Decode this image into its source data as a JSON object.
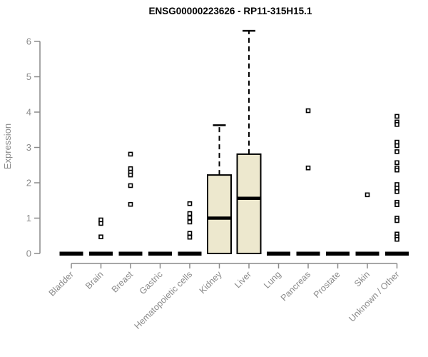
{
  "title": "ENSG00000223626 - RP11-315H15.1",
  "chart_data": {
    "type": "boxplot",
    "title": "ENSG00000223626 - RP11-315H15.1",
    "xlabel": "",
    "ylabel": "Expression",
    "ylim": [
      0,
      6.4
    ],
    "yticks": [
      0,
      1,
      2,
      3,
      4,
      5,
      6
    ],
    "grid": false,
    "legend": "none",
    "categories": [
      "Bladder",
      "Brain",
      "Breast",
      "Gastric",
      "Hematopoietic cells",
      "Kidney",
      "Liver",
      "Lung",
      "Pancreas",
      "Prostate",
      "Skin",
      "Unknown / Other"
    ],
    "boxes": [
      {
        "category": "Bladder",
        "q1": 0,
        "median": 0,
        "q3": 0,
        "whisker_low": 0,
        "whisker_high": 0,
        "outliers": []
      },
      {
        "category": "Brain",
        "q1": 0,
        "median": 0,
        "q3": 0,
        "whisker_low": 0,
        "whisker_high": 0,
        "outliers": [
          0.95,
          0.85,
          0.47
        ]
      },
      {
        "category": "Breast",
        "q1": 0,
        "median": 0,
        "q3": 0,
        "whisker_low": 0,
        "whisker_high": 0,
        "outliers": [
          2.81,
          2.4,
          2.3,
          2.22,
          1.92,
          1.39
        ]
      },
      {
        "category": "Gastric",
        "q1": 0,
        "median": 0,
        "q3": 0,
        "whisker_low": 0,
        "whisker_high": 0,
        "outliers": []
      },
      {
        "category": "Hematopoietic cells",
        "q1": 0,
        "median": 0,
        "q3": 0,
        "whisker_low": 0,
        "whisker_high": 0,
        "outliers": [
          1.41,
          1.13,
          1.01,
          0.89,
          0.57,
          0.46
        ]
      },
      {
        "category": "Kidney",
        "q1": 0,
        "median": 1.0,
        "q3": 2.22,
        "whisker_low": 0,
        "whisker_high": 3.63,
        "outliers": []
      },
      {
        "category": "Liver",
        "q1": 0,
        "median": 1.56,
        "q3": 2.81,
        "whisker_low": 0,
        "whisker_high": 6.3,
        "outliers": []
      },
      {
        "category": "Lung",
        "q1": 0,
        "median": 0,
        "q3": 0,
        "whisker_low": 0,
        "whisker_high": 0,
        "outliers": []
      },
      {
        "category": "Pancreas",
        "q1": 0,
        "median": 0,
        "q3": 0,
        "whisker_low": 0,
        "whisker_high": 0,
        "outliers": [
          4.04,
          2.42
        ]
      },
      {
        "category": "Prostate",
        "q1": 0,
        "median": 0,
        "q3": 0,
        "whisker_low": 0,
        "whisker_high": 0,
        "outliers": []
      },
      {
        "category": "Skin",
        "q1": 0,
        "median": 0,
        "q3": 0,
        "whisker_low": 0,
        "whisker_high": 0,
        "outliers": [
          1.66
        ]
      },
      {
        "category": "Unknown / Other",
        "q1": 0,
        "median": 0,
        "q3": 0,
        "whisker_low": 0,
        "whisker_high": 0,
        "outliers": [
          3.88,
          3.72,
          3.65,
          3.15,
          3.05,
          2.88,
          2.57,
          2.42,
          2.36,
          1.95,
          1.85,
          1.75,
          1.45,
          1.38,
          1.0,
          0.93,
          0.55,
          0.47,
          0.4
        ]
      }
    ],
    "colors": {
      "box_fill": "#EDE8CE",
      "box_stroke": "#000000",
      "median": "#000000",
      "whisker": "#000000",
      "outlier_stroke": "#000000",
      "outlier_fill": "#ffffff",
      "axis": "#8a8a8a",
      "title": "#000000",
      "background": "#ffffff"
    }
  }
}
